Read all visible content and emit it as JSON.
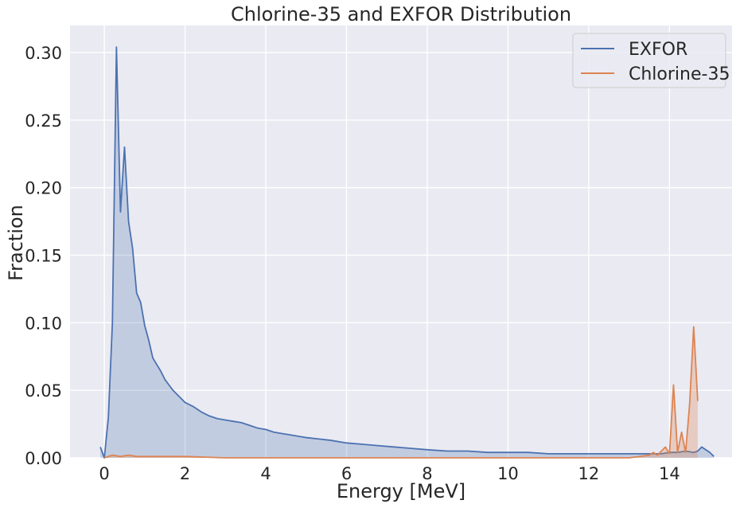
{
  "chart_data": {
    "type": "area",
    "title": "Chlorine-35 and EXFOR Distribution",
    "xlabel": "Energy [MeV]",
    "ylabel": "Fraction",
    "xlim": [
      -0.85,
      15.55
    ],
    "ylim": [
      0,
      0.32
    ],
    "xticks": [
      0,
      2,
      4,
      6,
      8,
      10,
      12,
      14
    ],
    "yticks": [
      0.0,
      0.05,
      0.1,
      0.15,
      0.2,
      0.25,
      0.3
    ],
    "xtick_labels": [
      "0",
      "2",
      "4",
      "6",
      "8",
      "10",
      "12",
      "14"
    ],
    "ytick_labels": [
      "0.00",
      "0.05",
      "0.10",
      "0.15",
      "0.20",
      "0.25",
      "0.30"
    ],
    "grid": true,
    "legend_position": "top-right",
    "background": "#eaeaf2",
    "series": [
      {
        "name": "EXFOR",
        "color": "#4c72b0",
        "fill": true,
        "x": [
          -0.1,
          0.0,
          0.1,
          0.2,
          0.3,
          0.4,
          0.5,
          0.6,
          0.7,
          0.8,
          0.9,
          1.0,
          1.1,
          1.2,
          1.3,
          1.4,
          1.5,
          1.6,
          1.7,
          1.8,
          1.9,
          2.0,
          2.2,
          2.4,
          2.6,
          2.8,
          3.0,
          3.2,
          3.4,
          3.6,
          3.8,
          4.0,
          4.2,
          4.4,
          4.6,
          4.8,
          5.0,
          5.3,
          5.6,
          6.0,
          6.4,
          6.8,
          7.2,
          7.6,
          8.0,
          8.5,
          9.0,
          9.5,
          10.0,
          10.5,
          11.0,
          11.5,
          12.0,
          12.5,
          13.0,
          13.5,
          13.8,
          14.0,
          14.2,
          14.4,
          14.6,
          14.7,
          14.8,
          14.9,
          15.0,
          15.1
        ],
        "y": [
          0.008,
          0.0,
          0.03,
          0.1,
          0.304,
          0.182,
          0.23,
          0.175,
          0.155,
          0.122,
          0.115,
          0.098,
          0.087,
          0.074,
          0.069,
          0.064,
          0.058,
          0.054,
          0.05,
          0.047,
          0.044,
          0.041,
          0.038,
          0.034,
          0.031,
          0.029,
          0.028,
          0.027,
          0.026,
          0.024,
          0.022,
          0.021,
          0.019,
          0.018,
          0.017,
          0.016,
          0.015,
          0.014,
          0.013,
          0.011,
          0.01,
          0.009,
          0.008,
          0.007,
          0.006,
          0.005,
          0.005,
          0.004,
          0.004,
          0.004,
          0.003,
          0.003,
          0.003,
          0.003,
          0.003,
          0.003,
          0.003,
          0.004,
          0.004,
          0.005,
          0.004,
          0.005,
          0.008,
          0.006,
          0.004,
          0.001
        ]
      },
      {
        "name": "Chlorine-35",
        "color": "#dd8452",
        "fill": true,
        "x": [
          0.0,
          0.2,
          0.4,
          0.6,
          0.8,
          1.0,
          1.5,
          2.0,
          3.0,
          4.0,
          5.0,
          6.0,
          7.0,
          8.0,
          9.0,
          10.0,
          11.0,
          12.0,
          13.0,
          13.5,
          13.6,
          13.7,
          13.8,
          13.9,
          14.0,
          14.1,
          14.2,
          14.3,
          14.4,
          14.5,
          14.6,
          14.7
        ],
        "y": [
          0.0,
          0.002,
          0.001,
          0.002,
          0.001,
          0.001,
          0.001,
          0.001,
          0.0,
          0.0,
          0.0,
          0.0,
          0.0,
          0.0,
          0.0,
          0.0,
          0.0,
          0.0,
          0.0,
          0.002,
          0.004,
          0.002,
          0.005,
          0.008,
          0.003,
          0.054,
          0.004,
          0.019,
          0.004,
          0.04,
          0.097,
          0.042
        ]
      }
    ]
  }
}
